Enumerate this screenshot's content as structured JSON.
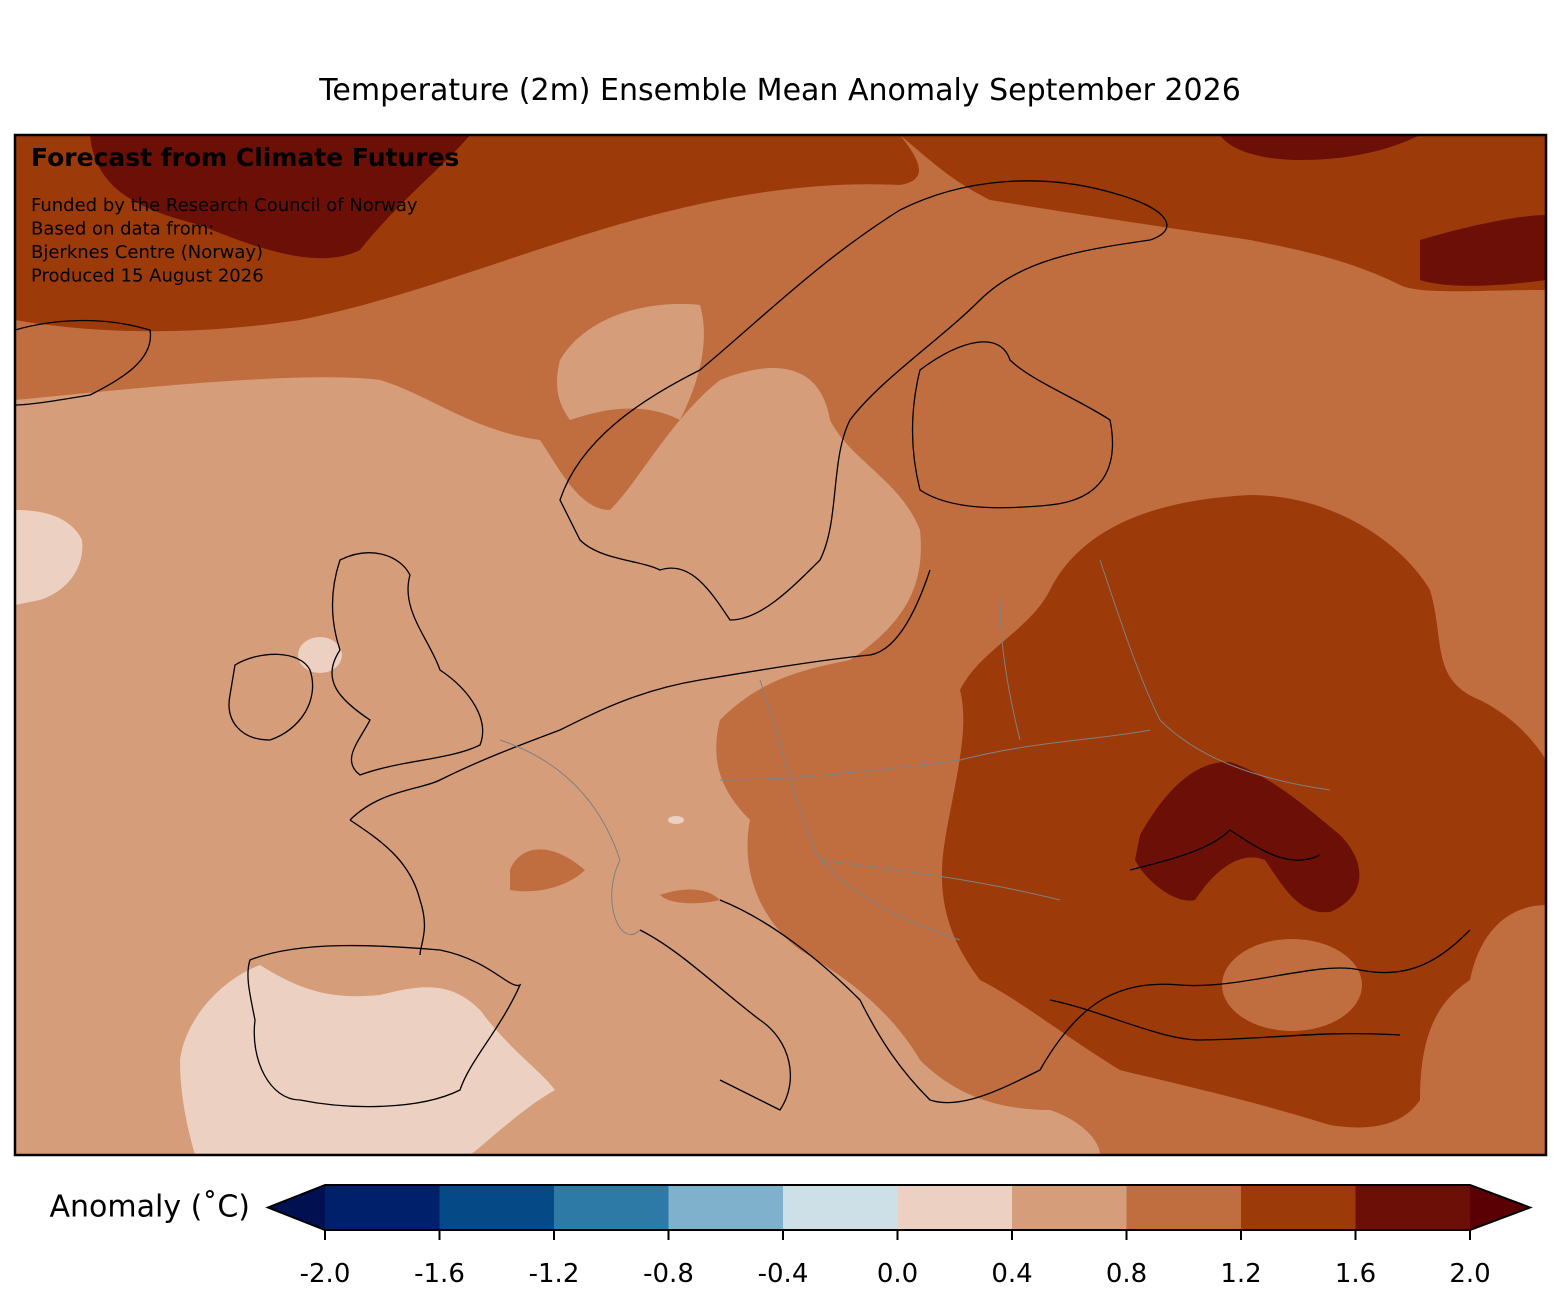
{
  "chart_data": {
    "type": "map",
    "title": "Temperature (2m) Ensemble Mean Anomaly September 2026",
    "annotations": [
      "Forecast from Climate Futures",
      "Funded by the Research Council of Norway",
      "Based on data from:",
      "Bjerknes Centre (Norway)",
      "Produced 15 August 2026"
    ],
    "colorbar_label": "Anomaly (˚C)",
    "colorbar_lim": [
      -2,
      2
    ],
    "colorbar_ticks": [
      {
        "value": -2,
        "label": "-2.0"
      },
      -1.6,
      -1.2,
      -0.8,
      -0.4,
      {
        "value": 0,
        "label": "0.0"
      },
      0.4,
      0.8,
      1.2,
      1.6,
      {
        "value": 2,
        "label": "2.0"
      }
    ],
    "colors": [
      "#00206b",
      "#054a86",
      "#2e7aa6",
      "#7fb1cc",
      "#cde0e8",
      "#ecd0c2",
      "#d59d7a",
      "#c06e40",
      "#9c3a0a",
      "#6b0f07"
    ],
    "under_color": "#001050",
    "over_color": "#5a0005"
  }
}
